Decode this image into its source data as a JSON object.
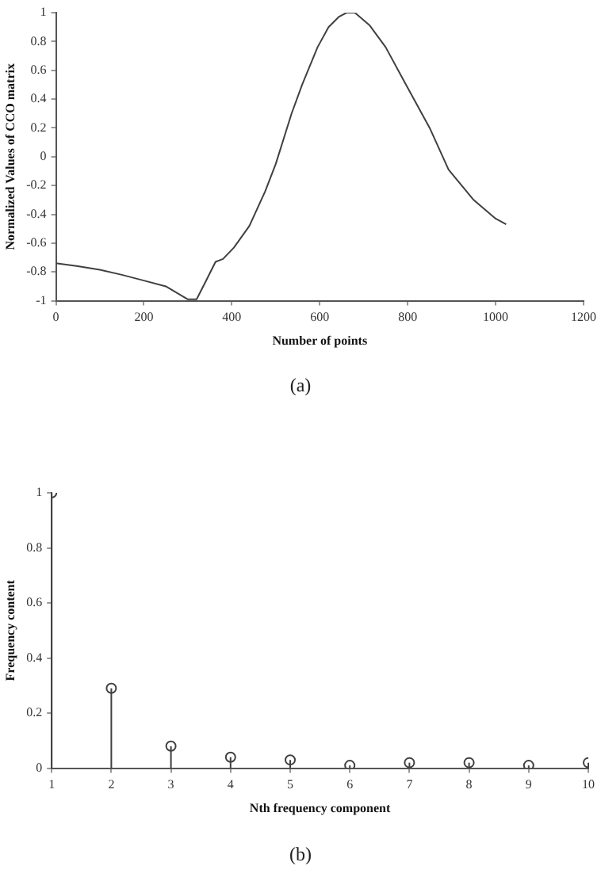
{
  "chart_data": [
    {
      "type": "line",
      "xlabel": "Number of points",
      "ylabel": "Normalized Values of CCO matrix",
      "color": "#404040",
      "annotations": [
        "(a)"
      ],
      "x": [
        0,
        50,
        100,
        150,
        200,
        250,
        300,
        320,
        340,
        363,
        380,
        405,
        440,
        476,
        500,
        536,
        560,
        595,
        620,
        643,
        661,
        680,
        714,
        750,
        798,
        850,
        893,
        950,
        1000,
        1024
      ],
      "values": [
        -0.74,
        -0.76,
        -0.785,
        -0.82,
        -0.86,
        -0.9,
        -0.99,
        -0.99,
        -0.87,
        -0.73,
        -0.71,
        -0.63,
        -0.48,
        -0.24,
        -0.05,
        0.3,
        0.5,
        0.76,
        0.9,
        0.97,
        1,
        1,
        0.91,
        0.76,
        0.49,
        0.2,
        -0.09,
        -0.3,
        -0.43,
        -0.47
      ],
      "xlim": [
        0,
        1200
      ],
      "xticks": [
        0,
        200,
        400,
        600,
        800,
        1000,
        1200
      ],
      "ylim": [
        -1,
        1
      ],
      "yticks": [
        -1,
        -0.8,
        -0.6,
        -0.4,
        -0.2,
        0,
        0.2,
        0.4,
        0.6,
        0.8,
        1
      ]
    },
    {
      "type": "lollipop",
      "xlabel": "Nth frequency component",
      "ylabel": "Frequency content",
      "color": "#404040",
      "marker": "circle",
      "annotations": [
        "(b)"
      ],
      "x": [
        1,
        2,
        3,
        4,
        5,
        6,
        7,
        8,
        9,
        10
      ],
      "values": [
        1,
        0.29,
        0.08,
        0.04,
        0.03,
        0.01,
        0.02,
        0.02,
        0.01,
        0.02
      ],
      "xlim": [
        1,
        10
      ],
      "xticks": [
        1,
        2,
        3,
        4,
        5,
        6,
        7,
        8,
        9,
        10
      ],
      "ylim": [
        0,
        1
      ],
      "yticks": [
        0,
        0.2,
        0.4,
        0.6,
        0.8,
        1
      ]
    }
  ]
}
